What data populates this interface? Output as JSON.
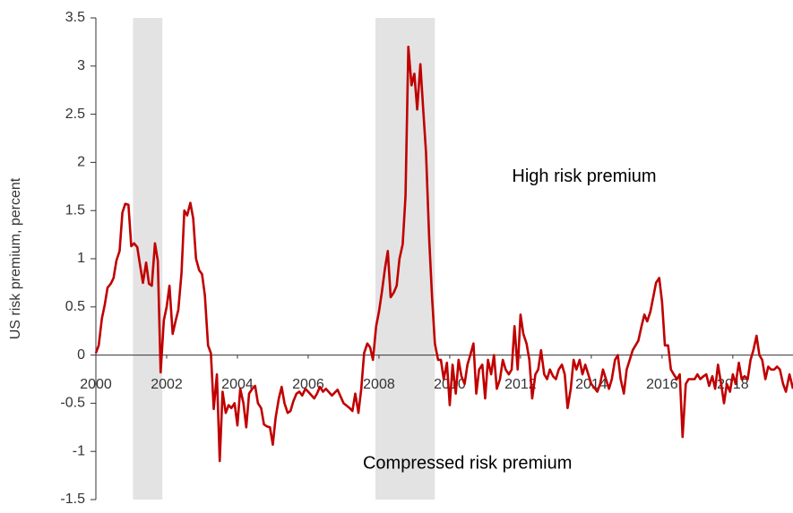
{
  "chart_data": {
    "type": "line",
    "y_label": "US risk premium, percent",
    "annotations": [
      {
        "text": "High risk premium",
        "x": 2013.8,
        "y": 1.85
      },
      {
        "text": "Compressed risk premium",
        "x": 2010.5,
        "y": -1.13
      }
    ],
    "xlim": [
      2000,
      2019.7
    ],
    "xticks": [
      2000,
      2002,
      2004,
      2006,
      2008,
      2010,
      2012,
      2014,
      2016,
      2018
    ],
    "ylim": [
      -1.5,
      3.5
    ],
    "yticks": [
      -1.5,
      -1,
      -0.5,
      0,
      0.5,
      1,
      1.5,
      2,
      2.5,
      3,
      3.5
    ],
    "recessions": [
      [
        2001.05,
        2001.88
      ],
      [
        2007.9,
        2009.58
      ]
    ],
    "recession_color": "#e3e3e3",
    "x": [
      2000.0,
      2000.08,
      2000.17,
      2000.25,
      2000.33,
      2000.42,
      2000.5,
      2000.58,
      2000.67,
      2000.75,
      2000.83,
      2000.92,
      2001.0,
      2001.08,
      2001.17,
      2001.25,
      2001.33,
      2001.42,
      2001.5,
      2001.58,
      2001.67,
      2001.75,
      2001.83,
      2001.92,
      2002.0,
      2002.08,
      2002.17,
      2002.25,
      2002.33,
      2002.42,
      2002.5,
      2002.58,
      2002.67,
      2002.75,
      2002.83,
      2002.92,
      2003.0,
      2003.08,
      2003.17,
      2003.25,
      2003.33,
      2003.42,
      2003.5,
      2003.58,
      2003.67,
      2003.75,
      2003.83,
      2003.92,
      2004.0,
      2004.08,
      2004.17,
      2004.25,
      2004.33,
      2004.42,
      2004.5,
      2004.58,
      2004.67,
      2004.75,
      2004.83,
      2004.92,
      2005.0,
      2005.08,
      2005.17,
      2005.25,
      2005.33,
      2005.42,
      2005.5,
      2005.58,
      2005.67,
      2005.75,
      2005.83,
      2005.92,
      2006.0,
      2006.17,
      2006.25,
      2006.33,
      2006.42,
      2006.5,
      2006.67,
      2006.83,
      2007.0,
      2007.17,
      2007.25,
      2007.33,
      2007.42,
      2007.5,
      2007.58,
      2007.67,
      2007.75,
      2007.83,
      2007.92,
      2008.0,
      2008.08,
      2008.17,
      2008.25,
      2008.33,
      2008.42,
      2008.5,
      2008.58,
      2008.67,
      2008.75,
      2008.83,
      2008.92,
      2009.0,
      2009.08,
      2009.17,
      2009.25,
      2009.33,
      2009.42,
      2009.5,
      2009.58,
      2009.67,
      2009.75,
      2009.83,
      2009.92,
      2010.0,
      2010.08,
      2010.17,
      2010.25,
      2010.33,
      2010.42,
      2010.5,
      2010.58,
      2010.67,
      2010.75,
      2010.83,
      2010.92,
      2011.0,
      2011.08,
      2011.17,
      2011.25,
      2011.33,
      2011.42,
      2011.5,
      2011.58,
      2011.67,
      2011.75,
      2011.83,
      2011.92,
      2012.0,
      2012.08,
      2012.17,
      2012.25,
      2012.33,
      2012.42,
      2012.5,
      2012.58,
      2012.67,
      2012.75,
      2012.83,
      2012.92,
      2013.0,
      2013.08,
      2013.17,
      2013.25,
      2013.33,
      2013.42,
      2013.5,
      2013.58,
      2013.67,
      2013.75,
      2013.83,
      2014.0,
      2014.17,
      2014.25,
      2014.33,
      2014.5,
      2014.58,
      2014.67,
      2014.75,
      2014.83,
      2014.92,
      2015.0,
      2015.17,
      2015.33,
      2015.42,
      2015.5,
      2015.58,
      2015.67,
      2015.75,
      2015.83,
      2015.92,
      2016.0,
      2016.08,
      2016.17,
      2016.25,
      2016.33,
      2016.42,
      2016.5,
      2016.58,
      2016.67,
      2016.75,
      2016.92,
      2017.0,
      2017.08,
      2017.17,
      2017.25,
      2017.33,
      2017.42,
      2017.5,
      2017.58,
      2017.67,
      2017.75,
      2017.83,
      2017.92,
      2018.0,
      2018.08,
      2018.17,
      2018.25,
      2018.33,
      2018.42,
      2018.5,
      2018.58,
      2018.67,
      2018.75,
      2018.83,
      2018.92,
      2019.0,
      2019.08,
      2019.17,
      2019.25,
      2019.33,
      2019.42,
      2019.5,
      2019.6,
      2019.7
    ],
    "series": [
      {
        "name": "US risk premium",
        "color": "#c00000",
        "values": [
          0.02,
          0.1,
          0.38,
          0.52,
          0.7,
          0.74,
          0.8,
          0.98,
          1.08,
          1.48,
          1.57,
          1.56,
          1.13,
          1.16,
          1.12,
          0.93,
          0.75,
          0.96,
          0.74,
          0.72,
          1.16,
          0.98,
          -0.18,
          0.36,
          0.5,
          0.72,
          0.22,
          0.35,
          0.47,
          0.85,
          1.5,
          1.45,
          1.58,
          1.42,
          1.0,
          0.88,
          0.84,
          0.62,
          0.1,
          0.02,
          -0.56,
          -0.2,
          -1.1,
          -0.38,
          -0.6,
          -0.52,
          -0.55,
          -0.5,
          -0.73,
          -0.35,
          -0.5,
          -0.75,
          -0.4,
          -0.35,
          -0.32,
          -0.5,
          -0.55,
          -0.72,
          -0.74,
          -0.75,
          -0.93,
          -0.65,
          -0.45,
          -0.33,
          -0.5,
          -0.6,
          -0.58,
          -0.48,
          -0.4,
          -0.38,
          -0.42,
          -0.35,
          -0.38,
          -0.45,
          -0.4,
          -0.33,
          -0.38,
          -0.35,
          -0.42,
          -0.36,
          -0.5,
          -0.55,
          -0.58,
          -0.4,
          -0.6,
          -0.35,
          0.02,
          0.12,
          0.08,
          -0.05,
          0.3,
          0.45,
          0.65,
          0.9,
          1.08,
          0.6,
          0.65,
          0.72,
          1.0,
          1.15,
          1.65,
          3.2,
          2.8,
          2.92,
          2.55,
          3.02,
          2.55,
          2.1,
          1.2,
          0.6,
          0.12,
          -0.05,
          -0.05,
          -0.25,
          -0.08,
          -0.52,
          -0.1,
          -0.4,
          -0.05,
          -0.22,
          -0.3,
          -0.1,
          0.0,
          0.12,
          -0.4,
          -0.15,
          -0.1,
          -0.45,
          -0.05,
          -0.2,
          0.0,
          -0.35,
          -0.25,
          -0.05,
          -0.15,
          -0.2,
          -0.15,
          0.3,
          -0.15,
          0.42,
          0.22,
          0.12,
          -0.05,
          -0.45,
          -0.2,
          -0.15,
          0.05,
          -0.2,
          -0.25,
          -0.15,
          -0.22,
          -0.25,
          -0.15,
          -0.1,
          -0.2,
          -0.55,
          -0.35,
          -0.05,
          -0.15,
          -0.05,
          -0.2,
          -0.1,
          -0.3,
          -0.38,
          -0.3,
          -0.15,
          -0.35,
          -0.25,
          -0.05,
          0.0,
          -0.25,
          -0.4,
          -0.15,
          0.05,
          0.15,
          0.3,
          0.42,
          0.35,
          0.45,
          0.6,
          0.75,
          0.8,
          0.55,
          0.1,
          0.1,
          -0.15,
          -0.2,
          -0.25,
          -0.2,
          -0.85,
          -0.3,
          -0.25,
          -0.25,
          -0.2,
          -0.25,
          -0.22,
          -0.2,
          -0.32,
          -0.22,
          -0.35,
          -0.1,
          -0.3,
          -0.5,
          -0.3,
          -0.38,
          -0.2,
          -0.3,
          -0.08,
          -0.25,
          -0.22,
          -0.25,
          -0.05,
          0.05,
          0.2,
          0.0,
          -0.05,
          -0.25,
          -0.12,
          -0.15,
          -0.15,
          -0.12,
          -0.15,
          -0.3,
          -0.38,
          -0.2,
          -0.35
        ]
      }
    ]
  }
}
